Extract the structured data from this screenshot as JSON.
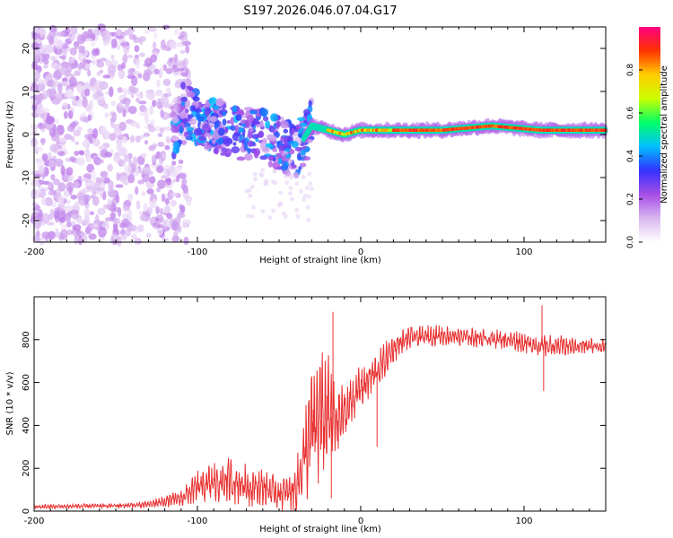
{
  "figure": {
    "title": "S197.2026.046.07.04.G17",
    "colors": {
      "snr_line": "#e83030",
      "axis": "#000000",
      "background": "#ffffff"
    }
  },
  "chart_data": [
    {
      "type": "heatmap",
      "title": "",
      "xlabel": "Height of straight line (km)",
      "ylabel": "Frequency (Hz)",
      "xlim": [
        -200,
        150
      ],
      "ylim": [
        -25,
        25
      ],
      "x_ticks": [
        -200,
        -100,
        0,
        100
      ],
      "y_ticks": [
        -20,
        -10,
        0,
        10,
        20
      ],
      "colorbar": {
        "label": "Normalized spectral amplitude",
        "range": [
          0,
          1
        ],
        "ticks": [
          0.0,
          0.2,
          0.4,
          0.6,
          0.8
        ],
        "colormap": [
          "#ffffff",
          "#d9b8f0",
          "#a64de6",
          "#3333ff",
          "#00bfff",
          "#00ff66",
          "#ccff00",
          "#ffcc00",
          "#ff3300",
          "#ff0080"
        ]
      },
      "ridge": [
        {
          "x": -110,
          "f": 6
        },
        {
          "x": -100,
          "f": 4
        },
        {
          "x": -90,
          "f": 2
        },
        {
          "x": -80,
          "f": 1
        },
        {
          "x": -70,
          "f": 0
        },
        {
          "x": -60,
          "f": 0
        },
        {
          "x": -50,
          "f": -2
        },
        {
          "x": -40,
          "f": -4
        },
        {
          "x": -30,
          "f": 2
        },
        {
          "x": -20,
          "f": 1
        },
        {
          "x": -10,
          "f": 0
        },
        {
          "x": 0,
          "f": 1
        },
        {
          "x": 20,
          "f": 1
        },
        {
          "x": 50,
          "f": 1
        },
        {
          "x": 80,
          "f": 2
        },
        {
          "x": 110,
          "f": 1
        },
        {
          "x": 150,
          "f": 1
        }
      ]
    },
    {
      "type": "line",
      "title": "",
      "xlabel": "Height of straight line (km)",
      "ylabel": "SNR (10 * v/v)",
      "xlim": [
        -200,
        150
      ],
      "ylim": [
        0,
        1000
      ],
      "x_ticks": [
        -200,
        -100,
        0,
        100
      ],
      "y_ticks": [
        0,
        200,
        400,
        600,
        800
      ],
      "series": [
        {
          "name": "SNR",
          "envelope": [
            {
              "x": -200,
              "mean": 20,
              "amp": 10
            },
            {
              "x": -150,
              "mean": 25,
              "amp": 10
            },
            {
              "x": -130,
              "mean": 30,
              "amp": 15
            },
            {
              "x": -110,
              "mean": 60,
              "amp": 35
            },
            {
              "x": -100,
              "mean": 110,
              "amp": 70
            },
            {
              "x": -90,
              "mean": 130,
              "amp": 90
            },
            {
              "x": -80,
              "mean": 140,
              "amp": 100
            },
            {
              "x": -70,
              "mean": 120,
              "amp": 90
            },
            {
              "x": -60,
              "mean": 110,
              "amp": 80
            },
            {
              "x": -50,
              "mean": 80,
              "amp": 70
            },
            {
              "x": -40,
              "mean": 100,
              "amp": 90
            },
            {
              "x": -30,
              "mean": 380,
              "amp": 280
            },
            {
              "x": -25,
              "mean": 450,
              "amp": 300
            },
            {
              "x": -20,
              "mean": 450,
              "amp": 280
            },
            {
              "x": -15,
              "mean": 420,
              "amp": 160
            },
            {
              "x": -10,
              "mean": 450,
              "amp": 120
            },
            {
              "x": -5,
              "mean": 520,
              "amp": 100
            },
            {
              "x": 0,
              "mean": 580,
              "amp": 100
            },
            {
              "x": 10,
              "mean": 650,
              "amp": 80
            },
            {
              "x": 20,
              "mean": 760,
              "amp": 60
            },
            {
              "x": 30,
              "mean": 810,
              "amp": 50
            },
            {
              "x": 50,
              "mean": 820,
              "amp": 40
            },
            {
              "x": 70,
              "mean": 810,
              "amp": 40
            },
            {
              "x": 90,
              "mean": 800,
              "amp": 40
            },
            {
              "x": 110,
              "mean": 770,
              "amp": 50
            },
            {
              "x": 130,
              "mean": 770,
              "amp": 40
            },
            {
              "x": 150,
              "mean": 770,
              "amp": 30
            }
          ],
          "spikes": [
            {
              "x": -17,
              "y": 930
            },
            {
              "x": -18,
              "y": 60
            },
            {
              "x": 10,
              "y": 300
            },
            {
              "x": 111,
              "y": 960
            },
            {
              "x": 112,
              "y": 560
            }
          ]
        }
      ]
    }
  ]
}
